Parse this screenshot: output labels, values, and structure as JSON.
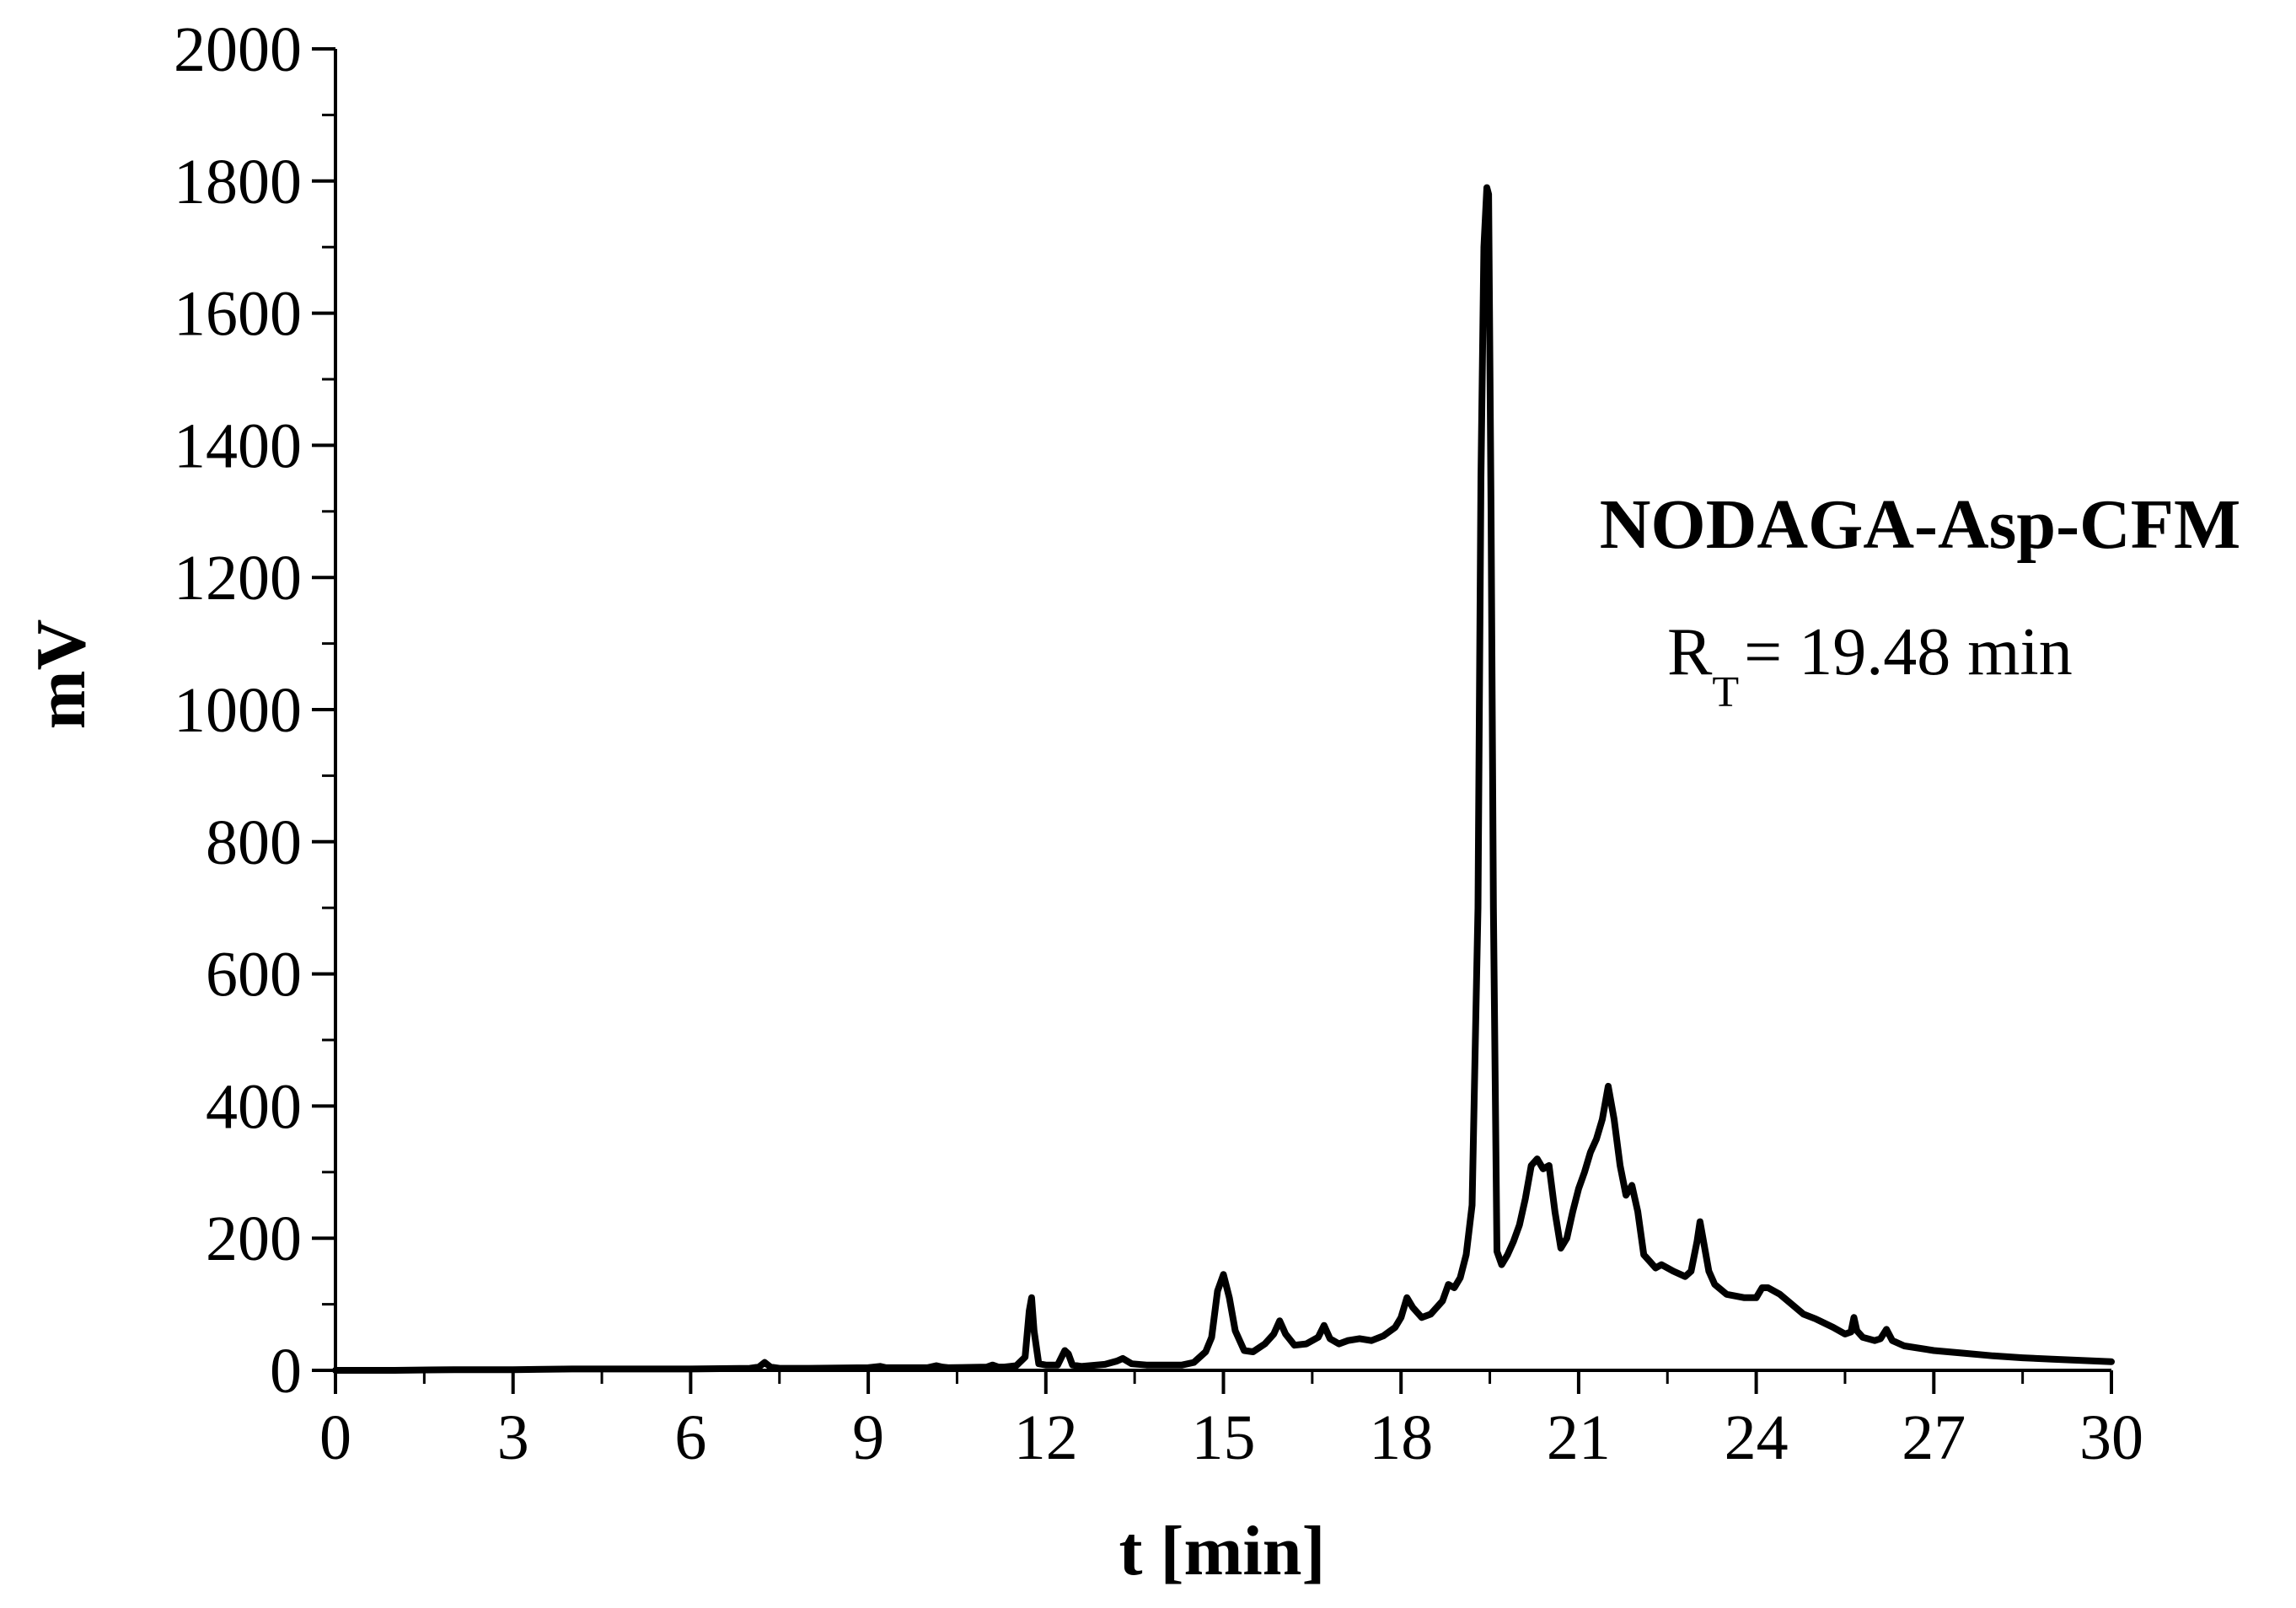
{
  "chart_data": {
    "type": "line",
    "title": "",
    "xlabel": "t [min]",
    "ylabel": "mV",
    "xlim": [
      0,
      30
    ],
    "ylim": [
      0,
      2000
    ],
    "x_ticks": [
      0,
      3,
      6,
      9,
      12,
      15,
      18,
      21,
      24,
      27,
      30
    ],
    "x_tick_labels": [
      "0",
      "3",
      "6",
      "9",
      "12",
      "15",
      "18",
      "21",
      "24",
      "27",
      "30"
    ],
    "y_ticks": [
      0,
      200,
      400,
      600,
      800,
      1000,
      1200,
      1400,
      1600,
      1800,
      2000
    ],
    "y_tick_labels": [
      "0",
      "200",
      "400",
      "600",
      "800",
      "1000",
      "1200",
      "1400",
      "1600",
      "1800",
      "2000"
    ],
    "x_minor_step": 1.5,
    "y_minor_step": 100,
    "grid": false,
    "line_color": "#000000",
    "annotation": {
      "title": "NODAGA-Asp-CFM",
      "rt_main": "R",
      "rt_sub": "T",
      "rt_value": "= 19.48 min"
    },
    "series": [
      {
        "x": [
          0,
          1,
          2,
          3,
          4,
          5,
          6,
          7,
          7.15,
          7.25,
          7.35,
          7.5,
          8,
          9,
          9.2,
          9.3,
          9.4,
          10,
          10.15,
          10.25,
          10.35,
          11,
          11.1,
          11.2,
          11.3,
          11.5,
          11.65,
          11.72,
          11.76,
          11.8,
          11.88,
          12.0,
          12.2,
          12.32,
          12.38,
          12.45,
          12.6,
          13.0,
          13.2,
          13.3,
          13.45,
          13.7,
          14.0,
          14.3,
          14.5,
          14.7,
          14.8,
          14.9,
          15.0,
          15.1,
          15.2,
          15.35,
          15.5,
          15.7,
          15.85,
          15.95,
          16.05,
          16.2,
          16.4,
          16.6,
          16.7,
          16.8,
          16.95,
          17.1,
          17.3,
          17.5,
          17.7,
          17.9,
          18.0,
          18.1,
          18.2,
          18.35,
          18.5,
          18.7,
          18.8,
          18.9,
          19.0,
          19.1,
          19.2,
          19.3,
          19.35,
          19.4,
          19.45,
          19.48,
          19.52,
          19.56,
          19.62,
          19.7,
          19.8,
          19.9,
          20.0,
          20.1,
          20.2,
          20.3,
          20.4,
          20.5,
          20.6,
          20.7,
          20.8,
          20.9,
          21.0,
          21.1,
          21.2,
          21.3,
          21.4,
          21.5,
          21.6,
          21.7,
          21.8,
          21.9,
          22.0,
          22.1,
          22.2,
          22.3,
          22.4,
          22.6,
          22.8,
          22.9,
          23.0,
          23.05,
          23.1,
          23.2,
          23.3,
          23.5,
          23.8,
          24.0,
          24.1,
          24.2,
          24.4,
          24.6,
          24.8,
          25.0,
          25.3,
          25.5,
          25.6,
          25.65,
          25.7,
          25.8,
          26.0,
          26.1,
          26.2,
          26.3,
          26.5,
          27.0,
          27.5,
          28.0,
          28.5,
          29.0,
          29.5,
          30.0
        ],
        "y": [
          0,
          0,
          1,
          1,
          2,
          2,
          2,
          3,
          5,
          12,
          5,
          3,
          3,
          4,
          6,
          4,
          4,
          4,
          7,
          5,
          4,
          5,
          8,
          5,
          5,
          7,
          20,
          90,
          110,
          60,
          10,
          8,
          8,
          30,
          25,
          8,
          6,
          9,
          14,
          18,
          10,
          8,
          8,
          8,
          12,
          28,
          50,
          120,
          145,
          110,
          60,
          30,
          28,
          40,
          55,
          75,
          55,
          38,
          40,
          50,
          68,
          48,
          40,
          45,
          48,
          45,
          52,
          65,
          80,
          110,
          95,
          80,
          85,
          105,
          130,
          125,
          140,
          175,
          250,
          700,
          1350,
          1700,
          1790,
          1780,
          1300,
          700,
          180,
          160,
          175,
          195,
          220,
          260,
          310,
          320,
          305,
          310,
          240,
          185,
          200,
          240,
          275,
          300,
          330,
          350,
          380,
          430,
          380,
          310,
          265,
          280,
          240,
          175,
          165,
          155,
          160,
          150,
          142,
          150,
          195,
          225,
          200,
          150,
          130,
          115,
          110,
          110,
          125,
          125,
          115,
          100,
          85,
          78,
          65,
          55,
          58,
          80,
          60,
          50,
          45,
          48,
          62,
          45,
          37,
          30,
          26,
          22,
          19,
          17,
          15,
          13
        ]
      }
    ]
  }
}
